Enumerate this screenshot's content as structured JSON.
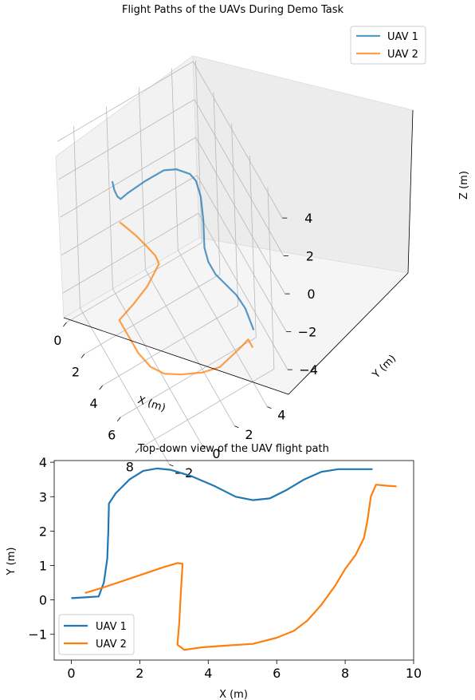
{
  "chart_data": [
    {
      "type": "line",
      "projection": "3d",
      "title": "Flight Paths of the UAVs During Demo Task",
      "xlabel": "X (m)",
      "ylabel": "Y (m)",
      "zlabel": "Z (m)",
      "x_ticks": [
        0,
        2,
        4,
        6,
        8
      ],
      "y_ticks": [
        -2,
        0,
        2,
        4
      ],
      "z_ticks": [
        -4,
        -2,
        0,
        2,
        4
      ],
      "xlim": [
        -0.3,
        9.6
      ],
      "ylim": [
        -3.0,
        5.3
      ],
      "zlim": [
        -5.3,
        4.3
      ],
      "grid": true,
      "legend": "top-right",
      "colors": {
        "UAV 1": "#1f77b4",
        "UAV 2": "#ff7f0e"
      },
      "series": [
        {
          "name": "UAV 1",
          "points": [
            [
              0.0,
              0.05,
              0.6
            ],
            [
              0.2,
              0.05,
              0.3
            ],
            [
              0.5,
              0.07,
              0.2
            ],
            [
              0.8,
              0.1,
              0.3
            ],
            [
              0.9,
              0.5,
              0.5
            ],
            [
              1.0,
              1.5,
              0.7
            ],
            [
              1.1,
              2.6,
              0.8
            ],
            [
              1.4,
              3.2,
              0.8
            ],
            [
              2.0,
              3.7,
              0.8
            ],
            [
              2.5,
              3.8,
              0.8
            ],
            [
              3.2,
              3.7,
              0.6
            ],
            [
              4.0,
              3.4,
              0.2
            ],
            [
              4.8,
              3.0,
              -0.4
            ],
            [
              5.4,
              2.9,
              -0.6
            ],
            [
              6.0,
              3.0,
              -0.8
            ],
            [
              6.6,
              3.3,
              -1.0
            ],
            [
              7.2,
              3.6,
              -1.2
            ],
            [
              7.8,
              3.8,
              -1.5
            ],
            [
              8.7,
              3.8,
              -1.9
            ]
          ]
        },
        {
          "name": "UAV 2",
          "points": [
            [
              0.4,
              0.2,
              -1.3
            ],
            [
              0.8,
              0.35,
              -1.3
            ],
            [
              1.5,
              0.6,
              -1.3
            ],
            [
              2.2,
              0.85,
              -1.4
            ],
            [
              2.8,
              1.05,
              -1.5
            ],
            [
              3.2,
              1.05,
              -1.6
            ],
            [
              3.2,
              0.3,
              -2.4
            ],
            [
              3.1,
              -0.5,
              -3.0
            ],
            [
              3.2,
              -1.45,
              -3.3
            ],
            [
              4.0,
              -1.35,
              -3.5
            ],
            [
              5.0,
              -1.3,
              -3.6
            ],
            [
              6.0,
              -1.1,
              -3.6
            ],
            [
              6.8,
              -0.7,
              -3.5
            ],
            [
              7.4,
              0.0,
              -3.4
            ],
            [
              8.0,
              1.0,
              -3.3
            ],
            [
              8.5,
              1.8,
              -3.0
            ],
            [
              8.7,
              3.0,
              -2.4
            ],
            [
              8.9,
              3.35,
              -2.0
            ],
            [
              9.5,
              3.3,
              -1.9
            ]
          ]
        }
      ]
    },
    {
      "type": "line",
      "title": "Top-down view of the UAV flight path",
      "xlabel": "X (m)",
      "ylabel": "Y (m)",
      "xlim": [
        -0.5,
        10
      ],
      "ylim": [
        -1.75,
        4.05
      ],
      "x_ticks": [
        0,
        2,
        4,
        6,
        8,
        10
      ],
      "y_ticks": [
        -1,
        0,
        1,
        2,
        3,
        4
      ],
      "grid": false,
      "legend": "bottom-left",
      "colors": {
        "UAV 1": "#1f77b4",
        "UAV 2": "#ff7f0e"
      },
      "series": [
        {
          "name": "UAV 1",
          "x": [
            0.0,
            0.3,
            0.5,
            0.8,
            0.95,
            1.05,
            1.08,
            1.1,
            1.3,
            1.7,
            2.1,
            2.5,
            2.9,
            3.5,
            4.2,
            4.8,
            5.3,
            5.8,
            6.3,
            6.8,
            7.3,
            7.8,
            8.3,
            8.8
          ],
          "y": [
            0.05,
            0.07,
            0.08,
            0.1,
            0.5,
            1.2,
            2.0,
            2.8,
            3.1,
            3.5,
            3.75,
            3.82,
            3.78,
            3.6,
            3.3,
            3.0,
            2.9,
            2.95,
            3.2,
            3.5,
            3.72,
            3.8,
            3.8,
            3.8
          ]
        },
        {
          "name": "UAV 2",
          "x": [
            0.4,
            0.9,
            1.5,
            2.1,
            2.7,
            3.1,
            3.25,
            3.2,
            3.15,
            3.1,
            3.3,
            3.8,
            4.5,
            5.3,
            6.0,
            6.5,
            6.9,
            7.3,
            7.7,
            8.0,
            8.3,
            8.55,
            8.65,
            8.75,
            8.9,
            9.2,
            9.5
          ],
          "y": [
            0.2,
            0.35,
            0.55,
            0.75,
            0.95,
            1.07,
            1.05,
            0.2,
            -0.7,
            -1.3,
            -1.45,
            -1.38,
            -1.33,
            -1.28,
            -1.1,
            -0.9,
            -0.6,
            -0.15,
            0.4,
            0.9,
            1.3,
            1.8,
            2.3,
            3.0,
            3.35,
            3.32,
            3.3
          ]
        }
      ]
    }
  ]
}
